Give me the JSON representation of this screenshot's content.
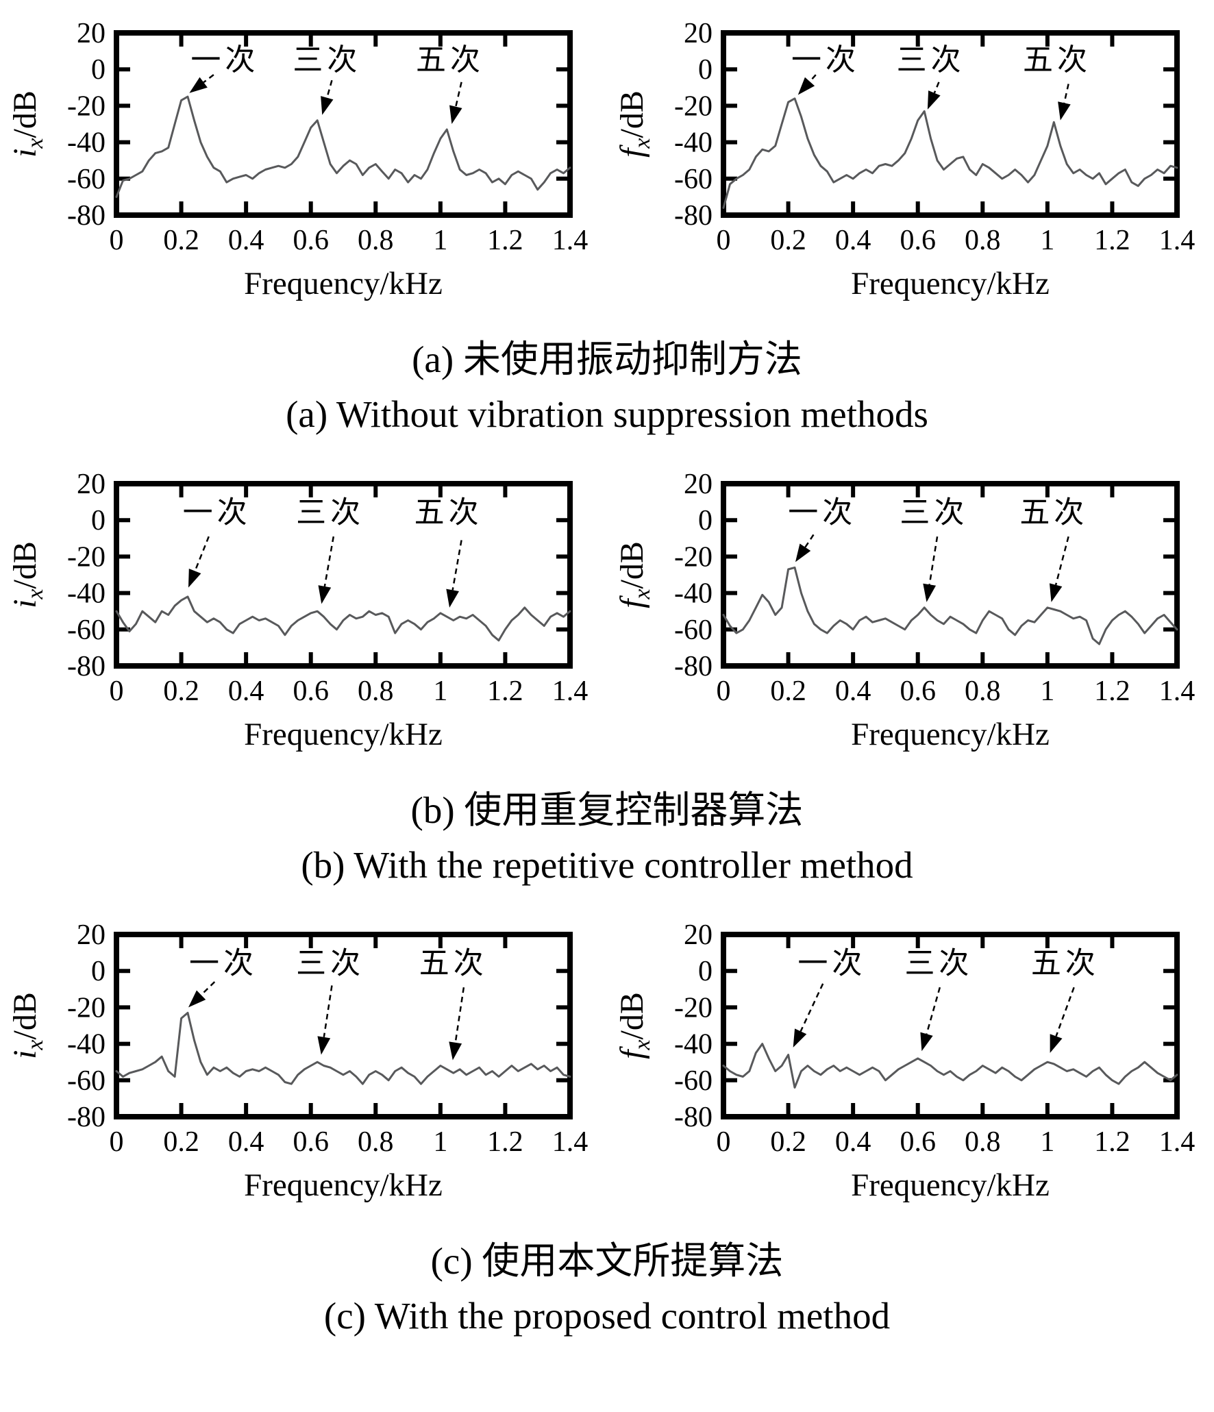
{
  "colors": {
    "curve": "#58595b",
    "axis": "#000000",
    "text": "#000000",
    "background": "#ffffff"
  },
  "captions": [
    {
      "zh": "(a) 未使用振动抑制方法",
      "en": "(a) Without vibration suppression methods"
    },
    {
      "zh": "(b) 使用重复控制器算法",
      "en": "(b) With the repetitive controller method"
    },
    {
      "zh": "(c) 使用本文所提算法",
      "en": "(c) With the proposed control method"
    }
  ],
  "axes": {
    "xlim": [
      0,
      1.4
    ],
    "ylim": [
      -80,
      20
    ],
    "xlabel": "Frequency/kHz",
    "x_ticks": [
      {
        "v": 0,
        "label": "0"
      },
      {
        "v": 0.2,
        "label": "0.2"
      },
      {
        "v": 0.4,
        "label": "0.4"
      },
      {
        "v": 0.6,
        "label": "0.6"
      },
      {
        "v": 0.8,
        "label": "0.8"
      },
      {
        "v": 1.0,
        "label": "1"
      },
      {
        "v": 1.2,
        "label": "1.2"
      },
      {
        "v": 1.4,
        "label": "1.4"
      }
    ],
    "y_ticks": [
      {
        "v": 20,
        "label": "20"
      },
      {
        "v": 0,
        "label": "0"
      },
      {
        "v": -20,
        "label": "-20"
      },
      {
        "v": -40,
        "label": "-40"
      },
      {
        "v": -60,
        "label": "-60"
      },
      {
        "v": -80,
        "label": "-80"
      }
    ]
  },
  "chart_data": [
    {
      "id": "a-left",
      "type": "line",
      "title": "",
      "xlabel": "Frequency/kHz",
      "ylabel": {
        "var": "i",
        "sub": "x",
        "unit": "/dB"
      },
      "x_start": 0,
      "x_step": 0.02,
      "values": [
        -70,
        -61,
        -60,
        -58,
        -56,
        -50,
        -46,
        -45,
        -43,
        -30,
        -17,
        -15,
        -28,
        -40,
        -48,
        -54,
        -56,
        -62,
        -60,
        -59,
        -58,
        -60,
        -57,
        -55,
        -54,
        -53,
        -54,
        -52,
        -48,
        -40,
        -32,
        -28,
        -40,
        -52,
        -57,
        -53,
        -50,
        -52,
        -58,
        -54,
        -52,
        -56,
        -60,
        -55,
        -57,
        -62,
        -58,
        -60,
        -55,
        -46,
        -38,
        -33,
        -45,
        -55,
        -58,
        -57,
        -55,
        -57,
        -62,
        -60,
        -63,
        -58,
        -56,
        -58,
        -60,
        -66,
        -62,
        -57,
        -55,
        -57,
        -54
      ],
      "peaks": [
        {
          "x": 0.21,
          "y": -15
        },
        {
          "x": 0.62,
          "y": -28
        },
        {
          "x": 1.02,
          "y": -33
        }
      ],
      "annotations": [
        {
          "label": "一次",
          "text_x": 0.335,
          "text_y": 5,
          "line": [
            0.3,
            -3,
            0.225,
            -13
          ]
        },
        {
          "label": "三次",
          "text_x": 0.65,
          "text_y": 5,
          "line": [
            0.665,
            -6,
            0.635,
            -25
          ]
        },
        {
          "label": "五次",
          "text_x": 1.03,
          "text_y": 5,
          "line": [
            1.065,
            -7,
            1.035,
            -30
          ]
        }
      ]
    },
    {
      "id": "a-right",
      "type": "line",
      "title": "",
      "xlabel": "Frequency/kHz",
      "ylabel": {
        "var": "f",
        "sub": "x",
        "unit": "/dB"
      },
      "x_start": 0,
      "x_step": 0.02,
      "values": [
        -76,
        -63,
        -60,
        -58,
        -55,
        -48,
        -44,
        -45,
        -42,
        -30,
        -18,
        -16,
        -26,
        -38,
        -47,
        -53,
        -56,
        -62,
        -60,
        -58,
        -60,
        -57,
        -55,
        -57,
        -53,
        -52,
        -53,
        -50,
        -46,
        -38,
        -28,
        -23,
        -38,
        -50,
        -55,
        -52,
        -49,
        -48,
        -55,
        -58,
        -52,
        -54,
        -57,
        -60,
        -58,
        -55,
        -58,
        -62,
        -58,
        -50,
        -42,
        -29,
        -42,
        -52,
        -57,
        -55,
        -58,
        -60,
        -57,
        -63,
        -60,
        -57,
        -55,
        -62,
        -64,
        -60,
        -58,
        -55,
        -57,
        -53,
        -54
      ],
      "peaks": [
        {
          "x": 0.22,
          "y": -16
        },
        {
          "x": 0.62,
          "y": -23
        },
        {
          "x": 1.02,
          "y": -29
        }
      ],
      "annotations": [
        {
          "label": "一次",
          "text_x": 0.315,
          "text_y": 5,
          "line": [
            0.285,
            -3,
            0.23,
            -14
          ]
        },
        {
          "label": "三次",
          "text_x": 0.64,
          "text_y": 5,
          "line": [
            0.665,
            -7,
            0.63,
            -22
          ]
        },
        {
          "label": "五次",
          "text_x": 1.03,
          "text_y": 5,
          "line": [
            1.065,
            -8,
            1.04,
            -28
          ]
        }
      ]
    },
    {
      "id": "b-left",
      "type": "line",
      "title": "",
      "xlabel": "Frequency/kHz",
      "ylabel": {
        "var": "i",
        "sub": "x",
        "unit": "/dB"
      },
      "x_start": 0,
      "x_step": 0.02,
      "values": [
        -50,
        -56,
        -61,
        -57,
        -50,
        -53,
        -56,
        -50,
        -52,
        -47,
        -44,
        -42,
        -50,
        -53,
        -56,
        -54,
        -56,
        -60,
        -62,
        -57,
        -55,
        -53,
        -55,
        -54,
        -56,
        -58,
        -63,
        -58,
        -55,
        -53,
        -51,
        -50,
        -53,
        -57,
        -60,
        -55,
        -52,
        -54,
        -53,
        -50,
        -52,
        -51,
        -53,
        -62,
        -57,
        -55,
        -57,
        -60,
        -56,
        -54,
        -51,
        -53,
        -55,
        -53,
        -54,
        -52,
        -55,
        -58,
        -63,
        -66,
        -60,
        -55,
        -52,
        -48,
        -52,
        -55,
        -58,
        -53,
        -51,
        -53,
        -50
      ],
      "peaks": [
        {
          "x": 0.21,
          "y": -42
        },
        {
          "x": 0.62,
          "y": -50
        },
        {
          "x": 1.0,
          "y": -51
        }
      ],
      "annotations": [
        {
          "label": "一次",
          "text_x": 0.31,
          "text_y": 4,
          "line": [
            0.285,
            -9,
            0.222,
            -37
          ]
        },
        {
          "label": "三次",
          "text_x": 0.66,
          "text_y": 4,
          "line": [
            0.67,
            -9,
            0.633,
            -46
          ]
        },
        {
          "label": "五次",
          "text_x": 1.025,
          "text_y": 4,
          "line": [
            1.065,
            -11,
            1.028,
            -48
          ]
        }
      ]
    },
    {
      "id": "b-right",
      "type": "line",
      "title": "",
      "xlabel": "Frequency/kHz",
      "ylabel": {
        "var": "f",
        "sub": "x",
        "unit": "/dB"
      },
      "x_start": 0,
      "x_step": 0.02,
      "values": [
        -52,
        -58,
        -62,
        -60,
        -55,
        -48,
        -41,
        -45,
        -52,
        -48,
        -27,
        -26,
        -40,
        -50,
        -57,
        -60,
        -62,
        -58,
        -55,
        -57,
        -60,
        -55,
        -53,
        -56,
        -55,
        -54,
        -56,
        -58,
        -60,
        -55,
        -52,
        -48,
        -52,
        -55,
        -57,
        -53,
        -55,
        -57,
        -60,
        -62,
        -55,
        -50,
        -52,
        -54,
        -60,
        -63,
        -58,
        -55,
        -56,
        -52,
        -48,
        -49,
        -50,
        -52,
        -54,
        -53,
        -55,
        -65,
        -68,
        -60,
        -55,
        -52,
        -50,
        -53,
        -57,
        -62,
        -58,
        -54,
        -52,
        -56,
        -60
      ],
      "peaks": [
        {
          "x": 0.21,
          "y": -26
        },
        {
          "x": 0.62,
          "y": -48
        },
        {
          "x": 1.0,
          "y": -48
        }
      ],
      "annotations": [
        {
          "label": "一次",
          "text_x": 0.305,
          "text_y": 4,
          "line": [
            0.278,
            -8,
            0.222,
            -23
          ]
        },
        {
          "label": "三次",
          "text_x": 0.65,
          "text_y": 4,
          "line": [
            0.66,
            -9,
            0.627,
            -45
          ]
        },
        {
          "label": "五次",
          "text_x": 1.02,
          "text_y": 4,
          "line": [
            1.065,
            -9,
            1.012,
            -45
          ]
        }
      ]
    },
    {
      "id": "c-left",
      "type": "line",
      "title": "",
      "xlabel": "Frequency/kHz",
      "ylabel": {
        "var": "i",
        "sub": "x",
        "unit": "/dB"
      },
      "x_start": 0,
      "x_step": 0.02,
      "values": [
        -55,
        -58,
        -56,
        -55,
        -54,
        -52,
        -50,
        -47,
        -55,
        -58,
        -26,
        -23,
        -38,
        -50,
        -57,
        -53,
        -55,
        -53,
        -56,
        -58,
        -55,
        -54,
        -55,
        -53,
        -55,
        -57,
        -61,
        -62,
        -57,
        -54,
        -52,
        -50,
        -52,
        -53,
        -55,
        -57,
        -55,
        -58,
        -62,
        -57,
        -55,
        -57,
        -60,
        -55,
        -53,
        -56,
        -58,
        -62,
        -58,
        -55,
        -52,
        -54,
        -56,
        -54,
        -57,
        -55,
        -53,
        -57,
        -55,
        -58,
        -55,
        -52,
        -55,
        -53,
        -51,
        -54,
        -52,
        -55,
        -53,
        -57,
        -58
      ],
      "peaks": [
        {
          "x": 0.21,
          "y": -23
        },
        {
          "x": 0.62,
          "y": -50
        },
        {
          "x": 1.0,
          "y": -52
        }
      ],
      "annotations": [
        {
          "label": "一次",
          "text_x": 0.33,
          "text_y": 4,
          "line": [
            0.303,
            -6,
            0.222,
            -20
          ]
        },
        {
          "label": "三次",
          "text_x": 0.66,
          "text_y": 4,
          "line": [
            0.665,
            -8,
            0.632,
            -46
          ]
        },
        {
          "label": "五次",
          "text_x": 1.04,
          "text_y": 4,
          "line": [
            1.072,
            -9,
            1.038,
            -49
          ]
        }
      ]
    },
    {
      "id": "c-right",
      "type": "line",
      "title": "",
      "xlabel": "Frequency/kHz",
      "ylabel": {
        "var": "f",
        "sub": "x",
        "unit": "/dB"
      },
      "x_start": 0,
      "x_step": 0.02,
      "values": [
        -52,
        -55,
        -57,
        -58,
        -55,
        -45,
        -40,
        -48,
        -55,
        -52,
        -46,
        -64,
        -55,
        -52,
        -55,
        -57,
        -54,
        -52,
        -55,
        -53,
        -55,
        -57,
        -55,
        -53,
        -55,
        -60,
        -57,
        -54,
        -52,
        -50,
        -48,
        -50,
        -52,
        -55,
        -57,
        -55,
        -58,
        -60,
        -57,
        -55,
        -52,
        -54,
        -56,
        -53,
        -55,
        -58,
        -60,
        -57,
        -54,
        -52,
        -50,
        -51,
        -53,
        -55,
        -54,
        -56,
        -58,
        -55,
        -53,
        -57,
        -60,
        -62,
        -58,
        -55,
        -53,
        -50,
        -53,
        -56,
        -58,
        -60,
        -57
      ],
      "peaks": [
        {
          "x": 0.2,
          "y": -46
        },
        {
          "x": 0.6,
          "y": -48
        },
        {
          "x": 1.0,
          "y": -50
        }
      ],
      "annotations": [
        {
          "label": "一次",
          "text_x": 0.335,
          "text_y": 4,
          "line": [
            0.307,
            -7,
            0.215,
            -42
          ]
        },
        {
          "label": "三次",
          "text_x": 0.665,
          "text_y": 4,
          "line": [
            0.668,
            -9,
            0.612,
            -44
          ]
        },
        {
          "label": "五次",
          "text_x": 1.055,
          "text_y": 4,
          "line": [
            1.082,
            -9,
            1.008,
            -45
          ]
        }
      ]
    }
  ]
}
